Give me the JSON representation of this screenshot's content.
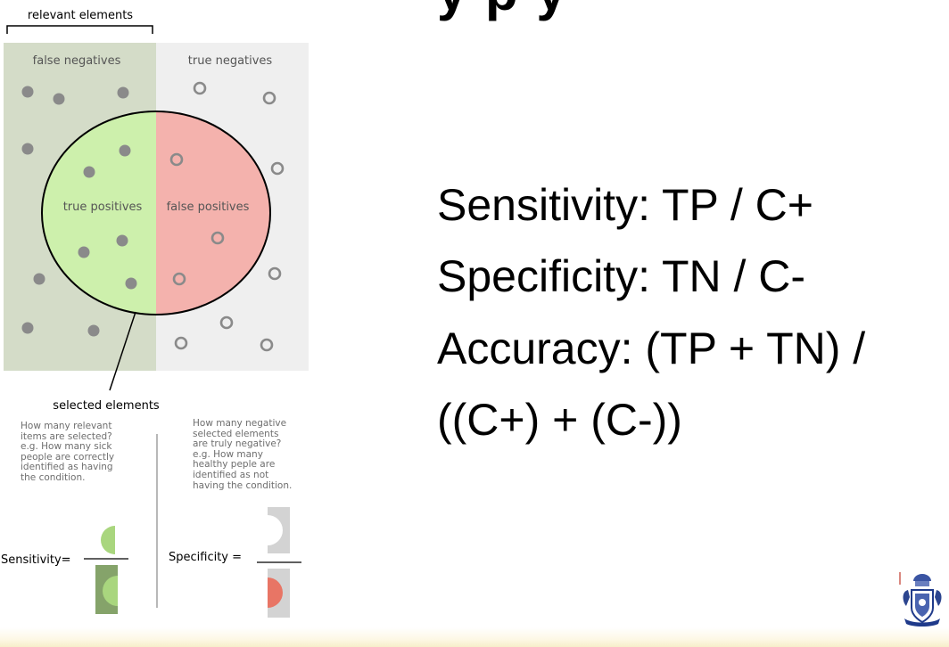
{
  "title_fragment": "y  p  y",
  "diagram": {
    "bracket_label": "relevant elements",
    "false_negatives": "false negatives",
    "true_negatives": "true negatives",
    "true_positives": "true positives",
    "false_positives": "false positives",
    "selected_label": "selected elements",
    "sensitivity_question": "How many relevant\nitems are selected?\ne.g. How many sick\npeople are correctly\nidentified as having\nthe condition.",
    "specificity_question": "How many negative\nselected elements\nare truly negative?\ne.g. How many\nhealthy peple are\nidentified as not\nhaving the condition.",
    "sensitivity_label": "Sensitivity=",
    "specificity_label": "Specificity =",
    "colors": {
      "relevant_bg": "#d4dcc8",
      "nonrelevant_bg": "#efefef",
      "true_positive": "#cdf0ac",
      "false_positive": "#f4b2ad",
      "dot": "#8a8a8a",
      "green_dark": "#85a36a",
      "green_light": "#a9d67e",
      "red": "#e87565",
      "gray": "#d3d3d3"
    }
  },
  "formulas": {
    "line1": "Sensitivity: TP / C+",
    "line2": "Specificity: TN / C-",
    "line3": "Accuracy: (TP + TN) /",
    "line4": "((C+) + (C-))"
  },
  "logo": {
    "icon": "university-crest-icon"
  }
}
